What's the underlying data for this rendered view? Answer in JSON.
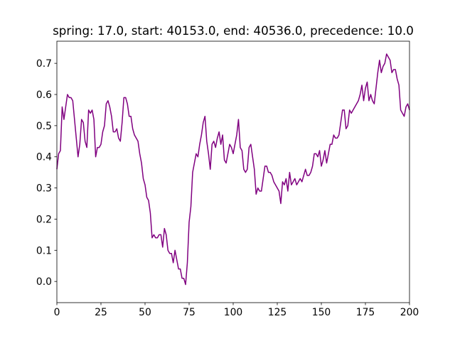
{
  "chart_data": {
    "type": "line",
    "title": "spring: 17.0, start: 40153.0, end: 40536.0, precedence: 10.0",
    "x": [
      0,
      1,
      2,
      3,
      4,
      5,
      6,
      7,
      8,
      9,
      10,
      11,
      12,
      13,
      14,
      15,
      16,
      17,
      18,
      19,
      20,
      21,
      22,
      23,
      24,
      25,
      26,
      27,
      28,
      29,
      30,
      31,
      32,
      33,
      34,
      35,
      36,
      37,
      38,
      39,
      40,
      41,
      42,
      43,
      44,
      45,
      46,
      47,
      48,
      49,
      50,
      51,
      52,
      53,
      54,
      55,
      56,
      57,
      58,
      59,
      60,
      61,
      62,
      63,
      64,
      65,
      66,
      67,
      68,
      69,
      70,
      71,
      72,
      73,
      74,
      75,
      76,
      77,
      78,
      79,
      80,
      81,
      82,
      83,
      84,
      85,
      86,
      87,
      88,
      89,
      90,
      91,
      92,
      93,
      94,
      95,
      96,
      97,
      98,
      99,
      100,
      101,
      102,
      103,
      104,
      105,
      106,
      107,
      108,
      109,
      110,
      111,
      112,
      113,
      114,
      115,
      116,
      117,
      118,
      119,
      120,
      121,
      122,
      123,
      124,
      125,
      126,
      127,
      128,
      129,
      130,
      131,
      132,
      133,
      134,
      135,
      136,
      137,
      138,
      139,
      140,
      141,
      142,
      143,
      144,
      145,
      146,
      147,
      148,
      149,
      150,
      151,
      152,
      153,
      154,
      155,
      156,
      157,
      158,
      159,
      160,
      161,
      162,
      163,
      164,
      165,
      166,
      167,
      168,
      169,
      170,
      171,
      172,
      173,
      174,
      175,
      176,
      177,
      178,
      179,
      180,
      181,
      182,
      183,
      184,
      185,
      186,
      187,
      188,
      189,
      190,
      191,
      192,
      193,
      194,
      195,
      196,
      197,
      198,
      199,
      200
    ],
    "series": [
      {
        "color": "#800080",
        "values": [
          0.36,
          0.41,
          0.42,
          0.56,
          0.52,
          0.56,
          0.6,
          0.59,
          0.59,
          0.58,
          0.52,
          0.46,
          0.4,
          0.44,
          0.52,
          0.51,
          0.45,
          0.43,
          0.55,
          0.54,
          0.55,
          0.52,
          0.4,
          0.43,
          0.43,
          0.44,
          0.48,
          0.5,
          0.57,
          0.58,
          0.56,
          0.53,
          0.48,
          0.48,
          0.49,
          0.46,
          0.45,
          0.51,
          0.59,
          0.59,
          0.57,
          0.53,
          0.53,
          0.49,
          0.47,
          0.46,
          0.45,
          0.41,
          0.38,
          0.33,
          0.31,
          0.27,
          0.26,
          0.22,
          0.14,
          0.15,
          0.14,
          0.14,
          0.15,
          0.15,
          0.11,
          0.17,
          0.15,
          0.1,
          0.09,
          0.09,
          0.06,
          0.1,
          0.07,
          0.04,
          0.04,
          0.01,
          0.01,
          -0.01,
          0.06,
          0.19,
          0.24,
          0.35,
          0.38,
          0.41,
          0.4,
          0.44,
          0.47,
          0.51,
          0.53,
          0.45,
          0.41,
          0.36,
          0.44,
          0.45,
          0.43,
          0.46,
          0.48,
          0.44,
          0.47,
          0.39,
          0.38,
          0.41,
          0.44,
          0.43,
          0.41,
          0.44,
          0.47,
          0.52,
          0.43,
          0.42,
          0.36,
          0.35,
          0.36,
          0.43,
          0.44,
          0.4,
          0.36,
          0.28,
          0.3,
          0.29,
          0.29,
          0.33,
          0.37,
          0.37,
          0.35,
          0.35,
          0.34,
          0.32,
          0.31,
          0.3,
          0.29,
          0.25,
          0.32,
          0.31,
          0.33,
          0.29,
          0.35,
          0.31,
          0.32,
          0.33,
          0.31,
          0.32,
          0.33,
          0.32,
          0.34,
          0.36,
          0.34,
          0.34,
          0.35,
          0.37,
          0.41,
          0.41,
          0.4,
          0.42,
          0.37,
          0.39,
          0.42,
          0.38,
          0.41,
          0.44,
          0.44,
          0.47,
          0.46,
          0.46,
          0.47,
          0.51,
          0.55,
          0.55,
          0.49,
          0.5,
          0.55,
          0.54,
          0.55,
          0.56,
          0.57,
          0.58,
          0.6,
          0.63,
          0.58,
          0.62,
          0.64,
          0.58,
          0.6,
          0.58,
          0.57,
          0.62,
          0.67,
          0.71,
          0.67,
          0.69,
          0.7,
          0.73,
          0.72,
          0.71,
          0.67,
          0.68,
          0.68,
          0.65,
          0.63,
          0.55,
          0.54,
          0.53,
          0.56,
          0.57,
          0.55
        ]
      }
    ],
    "xlim": [
      0,
      200
    ],
    "xticks": [
      0,
      25,
      50,
      75,
      100,
      125,
      150,
      175,
      200
    ],
    "ylim": [
      -0.068,
      0.771
    ],
    "yticks": [
      {
        "value": 0,
        "label": "0.0"
      },
      0.1,
      0.2,
      0.3,
      0.4,
      0.5,
      0.6,
      0.7
    ]
  }
}
